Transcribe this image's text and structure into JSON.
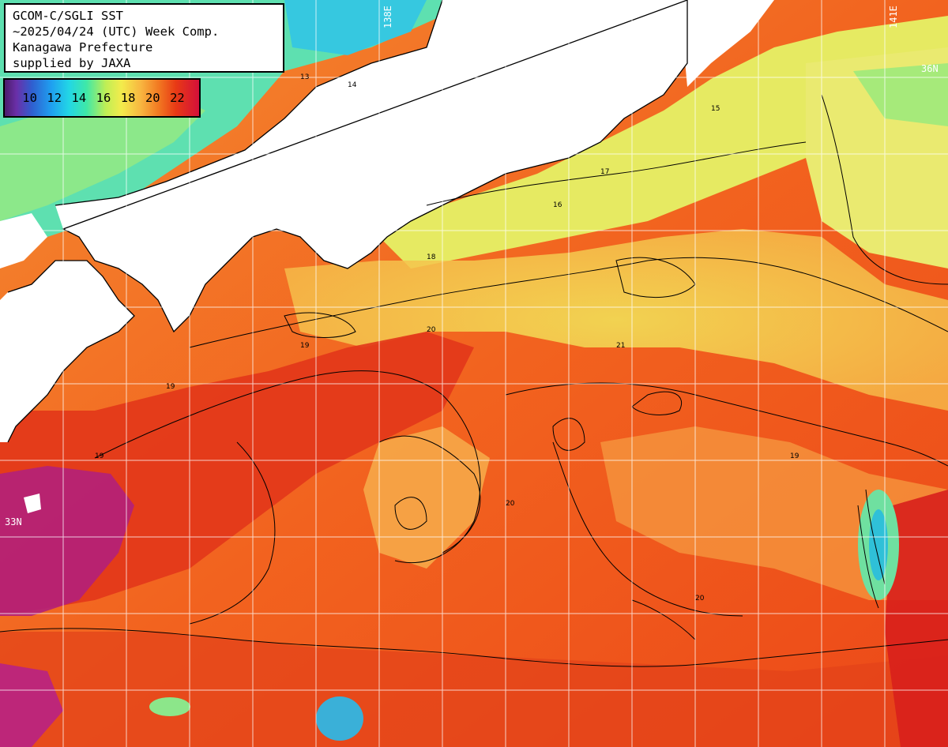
{
  "info": {
    "line1": "GCOM-C/SGLI SST",
    "line2": "~2025/04/24 (UTC) Week Comp.",
    "line3": "Kanagawa Prefecture",
    "line4": "supplied by JAXA"
  },
  "legend": {
    "ticks": [
      "10",
      "12",
      "14",
      "16",
      "18",
      "20",
      "22"
    ],
    "colors": [
      "#4b1d6b",
      "#2f5fd0",
      "#22d6e6",
      "#3fe8a8",
      "#f3ec4c",
      "#f27a22",
      "#d4103a"
    ]
  },
  "graticule": {
    "lat_label_1": "33N",
    "lat_label_2": "36N",
    "lon_label_1": "138E",
    "lon_label_2": "141E"
  },
  "contour_labels": [
    "19",
    "20",
    "21",
    "18",
    "17",
    "16",
    "15",
    "14",
    "13"
  ],
  "colors": {
    "land": "#ffffff",
    "warm_sea": "#f0561c",
    "hot_sea": "#e0201c",
    "mild_sea": "#f7a040",
    "cool_sea": "#e8e85a",
    "cold_sea": "#6ee6a0",
    "coldest_sea": "#21b7e8",
    "extreme_warm": "#9a1e78",
    "grid": "#ffffff",
    "contour": "#000000"
  }
}
